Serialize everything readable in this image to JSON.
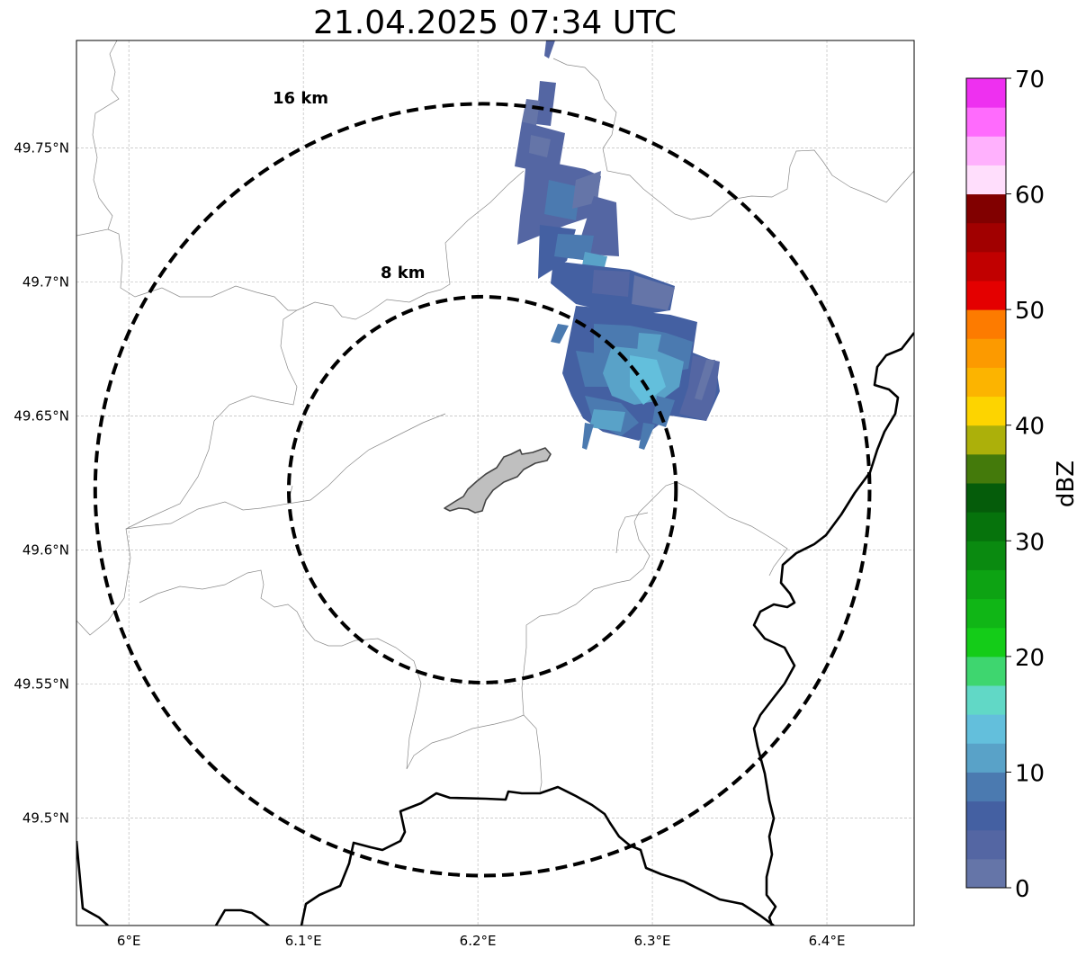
{
  "title": "21.04.2025 07:34 UTC",
  "map": {
    "lon_range": [
      5.97,
      6.45
    ],
    "lat_range": [
      49.46,
      49.79
    ],
    "center": {
      "lon": 6.2026,
      "lat": 49.6225
    },
    "lon_ticks": [
      {
        "value": 6.0,
        "label": "6°E"
      },
      {
        "value": 6.1,
        "label": "6.1°E"
      },
      {
        "value": 6.2,
        "label": "6.2°E"
      },
      {
        "value": 6.3,
        "label": "6.3°E"
      },
      {
        "value": 6.4,
        "label": "6.4°E"
      }
    ],
    "lat_ticks": [
      {
        "value": 49.75,
        "label": "49.75°N"
      },
      {
        "value": 49.7,
        "label": "49.7°N"
      },
      {
        "value": 49.65,
        "label": "49.65°N"
      },
      {
        "value": 49.6,
        "label": "49.6°N"
      },
      {
        "value": 49.55,
        "label": "49.55°N"
      },
      {
        "value": 49.5,
        "label": "49.5°N"
      }
    ],
    "gridlines": true,
    "range_rings": [
      {
        "radius_km": 8,
        "label": "8 km"
      },
      {
        "radius_km": 16,
        "label": "16 km"
      }
    ],
    "city_area": "Luxembourg city (grey polygon)",
    "borders": "national border (thick black), communal boundaries (thin grey)"
  },
  "reflectivity": {
    "description": "radar echo band oriented NNW-SSE, northeast of centre",
    "max_dbz_approx": 15
  },
  "colorbar": {
    "label": "dBZ",
    "min": 0,
    "max": 70,
    "tick_labels": [
      "0",
      "10",
      "20",
      "30",
      "40",
      "50",
      "60",
      "70"
    ],
    "colors": [
      "#6575a8",
      "#5466a3",
      "#4460a2",
      "#4b7ab0",
      "#59a2c8",
      "#63bfdc",
      "#61d8c6",
      "#3ed66f",
      "#14cc18",
      "#10b616",
      "#0da313",
      "#0a8a10",
      "#06730c",
      "#055c0a",
      "#447a0b",
      "#acb00a",
      "#fdd400",
      "#fcb400",
      "#fc9a00",
      "#fd7b00",
      "#e40000",
      "#c10000",
      "#a10000",
      "#810000",
      "#ffdefc",
      "#ffb1fd",
      "#ff6bfd",
      "#ee30f0"
    ]
  }
}
